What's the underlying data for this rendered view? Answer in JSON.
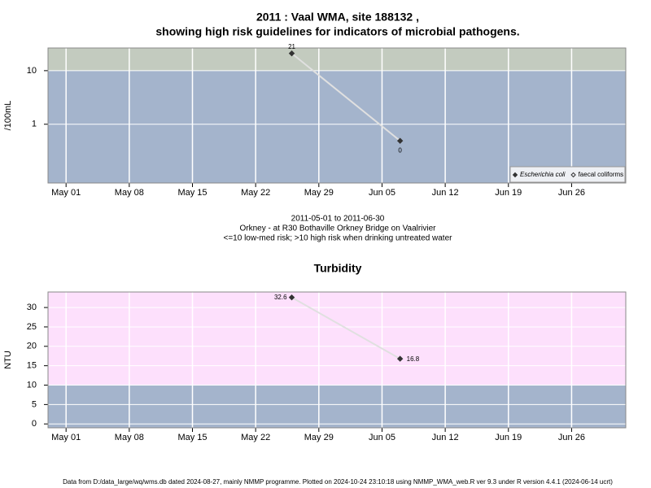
{
  "chart_data": [
    {
      "type": "line",
      "title": "2011 : Vaal WMA, site 188132 ,",
      "subtitle": "showing high risk guidelines for indicators of microbial pathogens.",
      "y_label": "/100mL",
      "yscale": "log",
      "ylim": [
        0.08,
        26.5
      ],
      "yticks": [
        1,
        10
      ],
      "xlim": [
        "2011-04-29",
        "2011-07-02"
      ],
      "xticks": [
        {
          "value": "2011-05-01",
          "label": "May 01"
        },
        {
          "value": "2011-05-08",
          "label": "May 08"
        },
        {
          "value": "2011-05-15",
          "label": "May 15"
        },
        {
          "value": "2011-05-22",
          "label": "May 22"
        },
        {
          "value": "2011-05-29",
          "label": "May 29"
        },
        {
          "value": "2011-06-05",
          "label": "Jun 05"
        },
        {
          "value": "2011-06-12",
          "label": "Jun 12"
        },
        {
          "value": "2011-06-19",
          "label": "Jun 19"
        },
        {
          "value": "2011-06-26",
          "label": "Jun 26"
        }
      ],
      "x": [
        "2011-05-26",
        "2011-06-07"
      ],
      "risk_threshold": 10,
      "above_color": "#c3cbbf",
      "below_color": "#a4b4cc",
      "grid": true,
      "legend": "lower right",
      "series": [
        {
          "name": "Escherichia coli",
          "color": "#333333",
          "marker": "filled",
          "values": [
            21,
            0.49
          ],
          "value_labels": [
            "21",
            "0"
          ],
          "label_positions": [
            "above",
            "below"
          ]
        },
        {
          "name": "faecal coliforms",
          "color": "#333333",
          "marker": "open",
          "values": [
            null,
            null
          ]
        }
      ]
    },
    {
      "type": "line",
      "title": "Turbidity",
      "y_label": "NTU",
      "yscale": "linear",
      "ylim": [
        -1,
        34
      ],
      "yticks": [
        0,
        5,
        10,
        15,
        20,
        25,
        30
      ],
      "xlim": [
        "2011-04-29",
        "2011-07-02"
      ],
      "xticks": [
        {
          "value": "2011-05-01",
          "label": "May 01"
        },
        {
          "value": "2011-05-08",
          "label": "May 08"
        },
        {
          "value": "2011-05-15",
          "label": "May 15"
        },
        {
          "value": "2011-05-22",
          "label": "May 22"
        },
        {
          "value": "2011-05-29",
          "label": "May 29"
        },
        {
          "value": "2011-06-05",
          "label": "Jun 05"
        },
        {
          "value": "2011-06-12",
          "label": "Jun 12"
        },
        {
          "value": "2011-06-19",
          "label": "Jun 19"
        },
        {
          "value": "2011-06-26",
          "label": "Jun 26"
        }
      ],
      "x": [
        "2011-05-26",
        "2011-06-07"
      ],
      "risk_threshold": 10,
      "above_color": "#fde0fc",
      "below_color": "#a4b4cc",
      "grid": true,
      "series": [
        {
          "color": "#333333",
          "marker": "filled",
          "values": [
            32.6,
            16.8
          ],
          "label_positions": [
            "left",
            "right"
          ]
        }
      ]
    }
  ],
  "caption": [
    "2011-05-01 to 2011-06-30",
    "Orkney - at R30 Bothaville Orkney Bridge on Vaalrivier",
    "<=10 low-med risk; >10 high risk when drinking untreated water"
  ],
  "footer": "Data from D:/data_large/wq/wms.db dated 2024-08-27, mainly NMMP programme. Plotted on 2024-10-24 23:10:18 using NMMP_WMA_web.R ver 9.3 under R version 4.4.1 (2024-06-14 ucrt)"
}
